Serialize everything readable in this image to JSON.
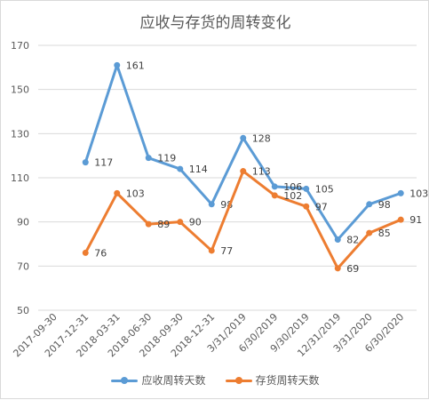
{
  "chart_data": {
    "type": "line",
    "title": "应收与存货的周转变化",
    "xlabel": "",
    "ylabel": "",
    "categories": [
      "2017-09-30",
      "2017-12-31",
      "2018-03-31",
      "2018-06-30",
      "2018-09-30",
      "2018-12-31",
      "3/31/2019",
      "6/30/2019",
      "9/30/2019",
      "12/31/2019",
      "3/31/2020",
      "6/30/2020"
    ],
    "ylim": [
      50,
      170
    ],
    "yticks": [
      50,
      70,
      90,
      110,
      130,
      150,
      170
    ],
    "grid": true,
    "legend_position": "bottom",
    "series": [
      {
        "name": "应收周转天数",
        "color": "#5b9bd5",
        "values": [
          null,
          117,
          161,
          119,
          114,
          98,
          128,
          106,
          105,
          82,
          98,
          103
        ]
      },
      {
        "name": "存货周转天数",
        "color": "#ed7d31",
        "values": [
          null,
          76,
          103,
          89,
          90,
          77,
          113,
          102,
          97,
          69,
          85,
          91
        ]
      }
    ]
  }
}
